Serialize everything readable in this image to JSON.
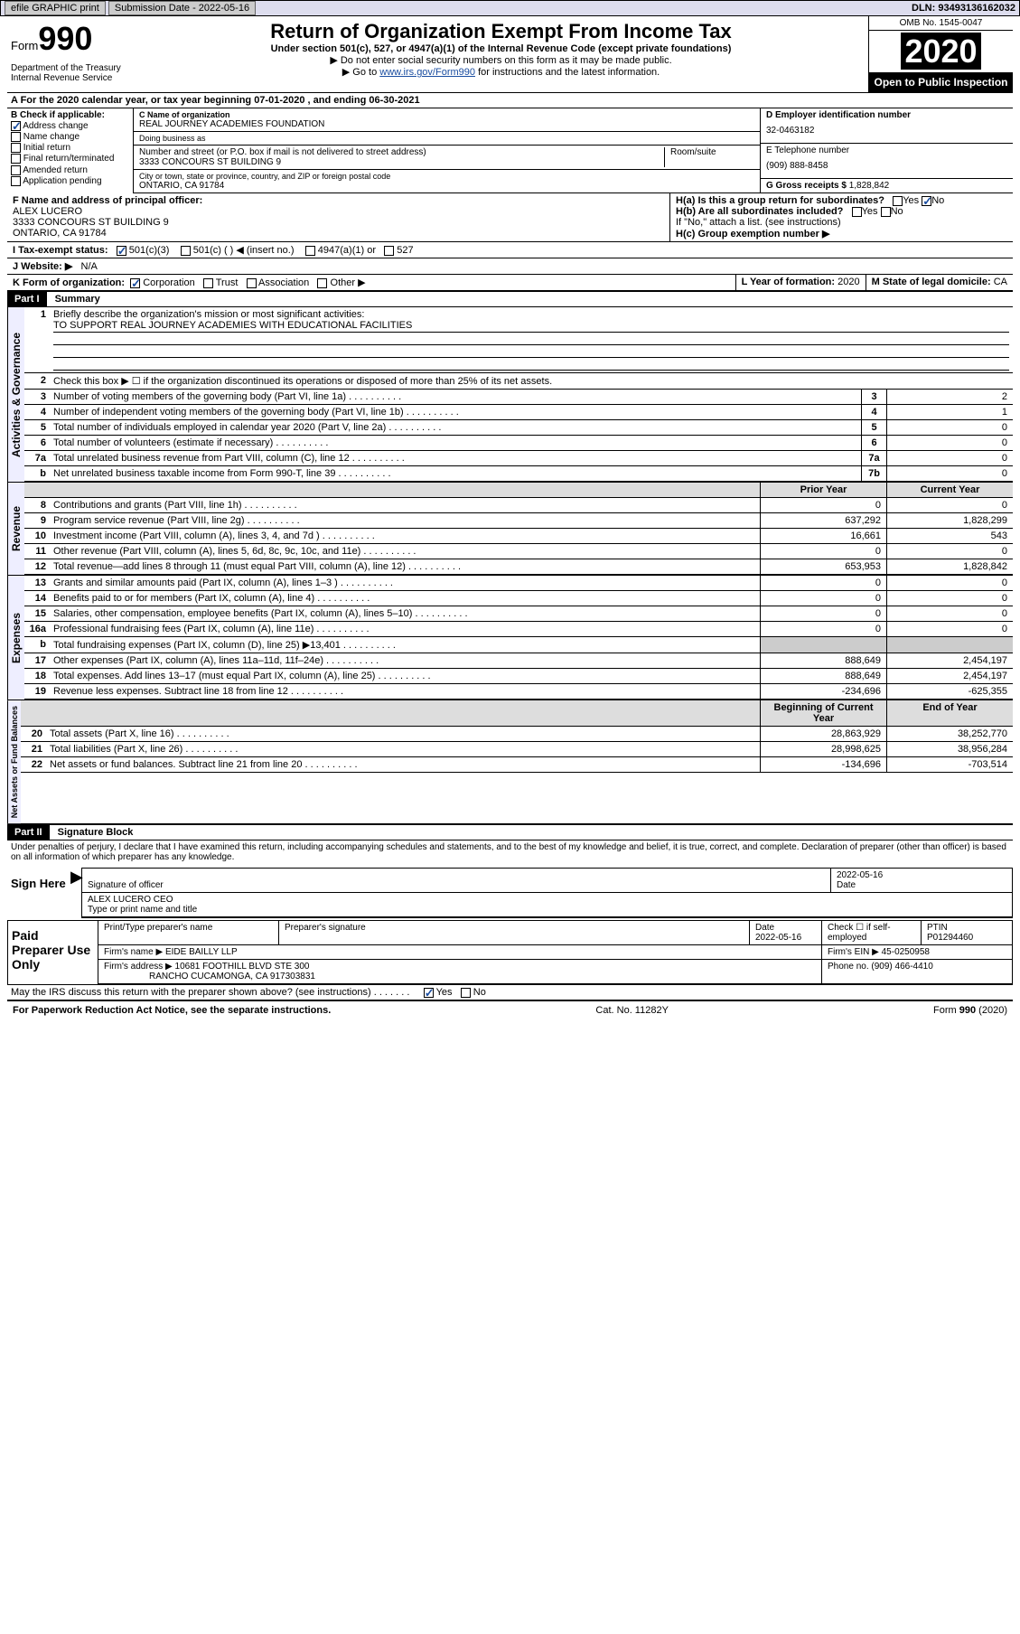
{
  "topbar": {
    "efile": "efile GRAPHIC print",
    "submission": "Submission Date - 2022-05-16",
    "dln": "DLN: 93493136162032"
  },
  "header": {
    "form_prefix": "Form",
    "form_number": "990",
    "dept": "Department of the Treasury\nInternal Revenue Service",
    "title": "Return of Organization Exempt From Income Tax",
    "subtitle": "Under section 501(c), 527, or 4947(a)(1) of the Internal Revenue Code (except private foundations)",
    "note1": "▶ Do not enter social security numbers on this form as it may be made public.",
    "note2_pre": "▶ Go to ",
    "note2_link": "www.irs.gov/Form990",
    "note2_post": " for instructions and the latest information.",
    "omb": "OMB No. 1545-0047",
    "year": "2020",
    "open": "Open to Public Inspection"
  },
  "line_a": "A For the 2020 calendar year, or tax year beginning 07-01-2020   , and ending 06-30-2021",
  "section_b": {
    "label": "B Check if applicable:",
    "items": [
      "Address change",
      "Name change",
      "Initial return",
      "Final return/terminated",
      "Amended return",
      "Application pending"
    ],
    "checked_index": 0
  },
  "section_c": {
    "name_label": "C Name of organization",
    "name": "REAL JOURNEY ACADEMIES FOUNDATION",
    "dba_label": "Doing business as",
    "dba": "",
    "addr_label": "Number and street (or P.O. box if mail is not delivered to street address)",
    "room_label": "Room/suite",
    "addr": "3333 CONCOURS ST BUILDING 9",
    "city_label": "City or town, state or province, country, and ZIP or foreign postal code",
    "city": "ONTARIO, CA  91784"
  },
  "section_d": {
    "label": "D Employer identification number",
    "value": "32-0463182"
  },
  "section_e": {
    "label": "E Telephone number",
    "value": "(909) 888-8458"
  },
  "section_g": {
    "label": "G Gross receipts $",
    "value": "1,828,842"
  },
  "section_f": {
    "label": "F  Name and address of principal officer:",
    "name": "ALEX LUCERO",
    "addr1": "3333 CONCOURS ST BUILDING 9",
    "addr2": "ONTARIO, CA  91784"
  },
  "section_h": {
    "ha": "H(a)  Is this a group return for subordinates?",
    "hb": "H(b)  Are all subordinates included?",
    "hb_note": "If \"No,\" attach a list. (see instructions)",
    "hc": "H(c)  Group exemption number ▶"
  },
  "section_i": {
    "label": "I   Tax-exempt status:",
    "opts": [
      "501(c)(3)",
      "501(c) (  ) ◀ (insert no.)",
      "4947(a)(1) or",
      "527"
    ]
  },
  "section_j": {
    "label": "J   Website: ▶",
    "value": "N/A"
  },
  "section_k": {
    "label": "K Form of organization:",
    "opts": [
      "Corporation",
      "Trust",
      "Association",
      "Other ▶"
    ]
  },
  "section_l": {
    "label": "L Year of formation:",
    "value": "2020"
  },
  "section_m": {
    "label": "M State of legal domicile:",
    "value": "CA"
  },
  "part1": {
    "header": "Part I",
    "title": "Summary",
    "q1_label": "Briefly describe the organization's mission or most significant activities:",
    "q1_text": "TO SUPPORT REAL JOURNEY ACADEMIES WITH EDUCATIONAL FACILITIES",
    "q2": "Check this box ▶ ☐  if the organization discontinued its operations or disposed of more than 25% of its net assets.",
    "rows_gov": [
      {
        "n": "3",
        "t": "Number of voting members of the governing body (Part VI, line 1a)",
        "r": "3",
        "v": "2"
      },
      {
        "n": "4",
        "t": "Number of independent voting members of the governing body (Part VI, line 1b)",
        "r": "4",
        "v": "1"
      },
      {
        "n": "5",
        "t": "Total number of individuals employed in calendar year 2020 (Part V, line 2a)",
        "r": "5",
        "v": "0"
      },
      {
        "n": "6",
        "t": "Total number of volunteers (estimate if necessary)",
        "r": "6",
        "v": "0"
      },
      {
        "n": "7a",
        "t": "Total unrelated business revenue from Part VIII, column (C), line 12",
        "r": "7a",
        "v": "0"
      },
      {
        "n": "b",
        "t": "Net unrelated business taxable income from Form 990-T, line 39",
        "r": "7b",
        "v": "0"
      }
    ],
    "col_headers": {
      "prior": "Prior Year",
      "current": "Current Year"
    },
    "rows_rev": [
      {
        "n": "8",
        "t": "Contributions and grants (Part VIII, line 1h)",
        "p": "0",
        "c": "0"
      },
      {
        "n": "9",
        "t": "Program service revenue (Part VIII, line 2g)",
        "p": "637,292",
        "c": "1,828,299"
      },
      {
        "n": "10",
        "t": "Investment income (Part VIII, column (A), lines 3, 4, and 7d )",
        "p": "16,661",
        "c": "543"
      },
      {
        "n": "11",
        "t": "Other revenue (Part VIII, column (A), lines 5, 6d, 8c, 9c, 10c, and 11e)",
        "p": "0",
        "c": "0"
      },
      {
        "n": "12",
        "t": "Total revenue—add lines 8 through 11 (must equal Part VIII, column (A), line 12)",
        "p": "653,953",
        "c": "1,828,842"
      }
    ],
    "rows_exp": [
      {
        "n": "13",
        "t": "Grants and similar amounts paid (Part IX, column (A), lines 1–3 )",
        "p": "0",
        "c": "0"
      },
      {
        "n": "14",
        "t": "Benefits paid to or for members (Part IX, column (A), line 4)",
        "p": "0",
        "c": "0"
      },
      {
        "n": "15",
        "t": "Salaries, other compensation, employee benefits (Part IX, column (A), lines 5–10)",
        "p": "0",
        "c": "0"
      },
      {
        "n": "16a",
        "t": "Professional fundraising fees (Part IX, column (A), line 11e)",
        "p": "0",
        "c": "0"
      },
      {
        "n": "b",
        "t": "Total fundraising expenses (Part IX, column (D), line 25) ▶13,401",
        "p": "",
        "c": "",
        "grey": true
      },
      {
        "n": "17",
        "t": "Other expenses (Part IX, column (A), lines 11a–11d, 11f–24e)",
        "p": "888,649",
        "c": "2,454,197"
      },
      {
        "n": "18",
        "t": "Total expenses. Add lines 13–17 (must equal Part IX, column (A), line 25)",
        "p": "888,649",
        "c": "2,454,197"
      },
      {
        "n": "19",
        "t": "Revenue less expenses. Subtract line 18 from line 12",
        "p": "-234,696",
        "c": "-625,355"
      }
    ],
    "col_headers2": {
      "begin": "Beginning of Current Year",
      "end": "End of Year"
    },
    "rows_net": [
      {
        "n": "20",
        "t": "Total assets (Part X, line 16)",
        "p": "28,863,929",
        "c": "38,252,770"
      },
      {
        "n": "21",
        "t": "Total liabilities (Part X, line 26)",
        "p": "28,998,625",
        "c": "38,956,284"
      },
      {
        "n": "22",
        "t": "Net assets or fund balances. Subtract line 21 from line 20",
        "p": "-134,696",
        "c": "-703,514"
      }
    ],
    "vtab_gov": "Activities & Governance",
    "vtab_rev": "Revenue",
    "vtab_exp": "Expenses",
    "vtab_net": "Net Assets or Fund Balances"
  },
  "part2": {
    "header": "Part II",
    "title": "Signature Block",
    "decl": "Under penalties of perjury, I declare that I have examined this return, including accompanying schedules and statements, and to the best of my knowledge and belief, it is true, correct, and complete. Declaration of preparer (other than officer) is based on all information of which preparer has any knowledge.",
    "sign_here": "Sign Here",
    "sig_officer": "Signature of officer",
    "sig_date_lbl": "Date",
    "sig_date": "2022-05-16",
    "officer_name": "ALEX LUCERO  CEO",
    "officer_type": "Type or print name and title"
  },
  "paid_prep": {
    "label": "Paid Preparer Use Only",
    "h_name": "Print/Type preparer's name",
    "h_sig": "Preparer's signature",
    "h_date": "Date",
    "date": "2022-05-16",
    "h_check": "Check ☐ if self-employed",
    "h_ptin": "PTIN",
    "ptin": "P01294460",
    "firm_name_lbl": "Firm's name   ▶",
    "firm_name": "EIDE BAILLY LLP",
    "firm_ein_lbl": "Firm's EIN ▶",
    "firm_ein": "45-0250958",
    "firm_addr_lbl": "Firm's address ▶",
    "firm_addr1": "10681 FOOTHILL BLVD STE 300",
    "firm_addr2": "RANCHO CUCAMONGA, CA  917303831",
    "phone_lbl": "Phone no.",
    "phone": "(909) 466-4410"
  },
  "discuss": "May the IRS discuss this return with the preparer shown above? (see instructions)",
  "footer": {
    "left": "For Paperwork Reduction Act Notice, see the separate instructions.",
    "mid": "Cat. No. 11282Y",
    "right": "Form 990 (2020)"
  }
}
